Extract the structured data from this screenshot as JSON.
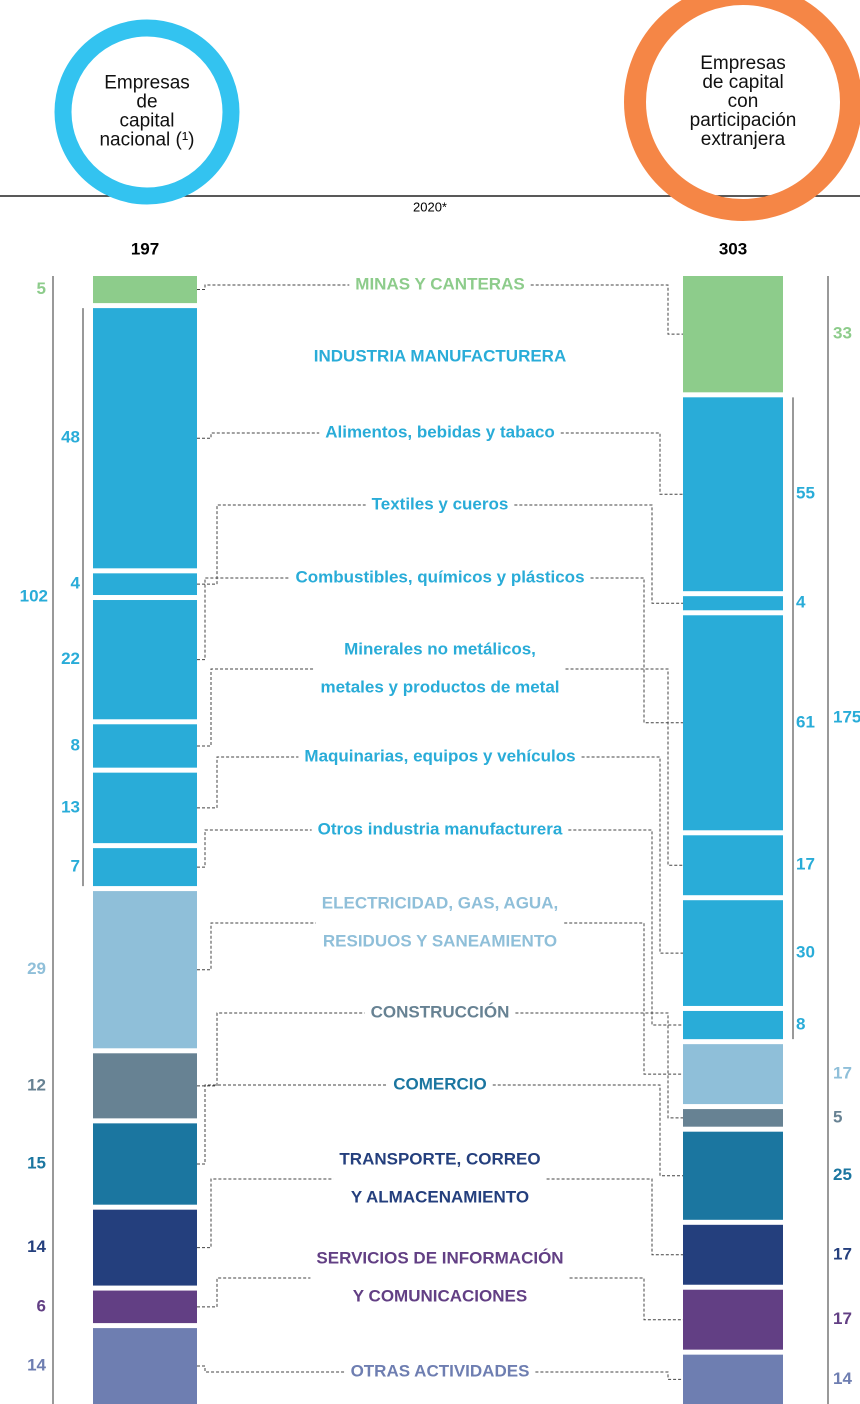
{
  "chart_data": {
    "type": "stacked_columns",
    "year": "2020*",
    "columns": [
      {
        "title_lines": [
          "Empresas",
          "de",
          "capital",
          "nacional (¹)"
        ],
        "total": 197,
        "color": "#33c3f0"
      },
      {
        "title_lines": [
          "Empresas",
          "de capital",
          "con",
          "participación",
          "extranjera"
        ],
        "total": 303,
        "color": "#f58646"
      }
    ],
    "group": {
      "label": "INDUSTRIA MANUFACTURERA",
      "color": "#29acd8",
      "totals": [
        102,
        175
      ]
    },
    "sectors": [
      {
        "label_lines": [
          "MINAS Y CANTERAS"
        ],
        "color": "#8dcc8b",
        "values": [
          5,
          33
        ],
        "in_group": false
      },
      {
        "label_lines": [
          "Alimentos, bebidas y tabaco"
        ],
        "color": "#29acd8",
        "values": [
          48,
          55
        ],
        "in_group": true
      },
      {
        "label_lines": [
          "Textiles y cueros"
        ],
        "color": "#29acd8",
        "values": [
          4,
          4
        ],
        "in_group": true
      },
      {
        "label_lines": [
          "Combustibles, químicos y plásticos"
        ],
        "color": "#29acd8",
        "values": [
          22,
          61
        ],
        "in_group": true
      },
      {
        "label_lines": [
          "Minerales no metálicos,",
          "metales y productos de metal"
        ],
        "color": "#29acd8",
        "values": [
          8,
          17
        ],
        "in_group": true
      },
      {
        "label_lines": [
          "Maquinarias, equipos y vehículos"
        ],
        "color": "#29acd8",
        "values": [
          13,
          30
        ],
        "in_group": true
      },
      {
        "label_lines": [
          "Otros industria manufacturera"
        ],
        "color": "#29acd8",
        "values": [
          7,
          8
        ],
        "in_group": true
      },
      {
        "label_lines": [
          "ELECTRICIDAD, GAS, AGUA,",
          "RESIDUOS Y SANEAMIENTO"
        ],
        "color": "#8fbfd9",
        "values": [
          29,
          17
        ],
        "in_group": false
      },
      {
        "label_lines": [
          "CONSTRUCCIÓN"
        ],
        "color": "#678293",
        "values": [
          12,
          5
        ],
        "in_group": false
      },
      {
        "label_lines": [
          "COMERCIO"
        ],
        "color": "#1b76a0",
        "values": [
          15,
          25
        ],
        "in_group": false
      },
      {
        "label_lines": [
          "TRANSPORTE, CORREO",
          "Y ALMACENAMIENTO"
        ],
        "color": "#243f7d",
        "values": [
          14,
          17
        ],
        "in_group": false
      },
      {
        "label_lines": [
          "SERVICIOS DE INFORMACIÓN",
          "Y COMUNICACIONES"
        ],
        "color": "#623f84",
        "values": [
          6,
          17
        ],
        "in_group": false
      },
      {
        "label_lines": [
          "OTRAS ACTIVIDADES"
        ],
        "color": "#6e7eb1",
        "values": [
          14,
          14
        ],
        "in_group": false
      }
    ]
  }
}
